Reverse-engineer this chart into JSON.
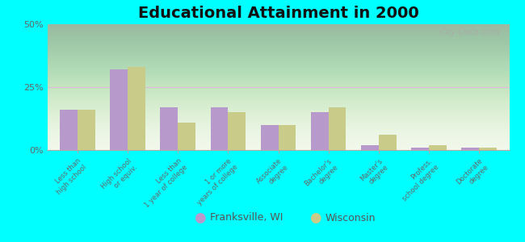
{
  "title": "Educational Attainment in 2000",
  "categories": [
    "Less than\nhigh school",
    "High school\nor equiv.",
    "Less than\n1 year of college",
    "1 or more\nyears of college",
    "Associate\ndegree",
    "Bachelor's\ndegree",
    "Master's\ndegree",
    "Profess.\nschool degree",
    "Doctorate\ndegree"
  ],
  "franksville": [
    16,
    32,
    17,
    17,
    10,
    15,
    2,
    1,
    1
  ],
  "wisconsin": [
    16,
    33,
    11,
    15,
    10,
    17,
    6,
    2,
    1
  ],
  "franksville_color": "#b899cc",
  "wisconsin_color": "#c8cc88",
  "background_top": "#f0f7e8",
  "background_bottom": "#d4eecc",
  "outer_background": "#00ffff",
  "ylim": [
    0,
    50
  ],
  "yticks": [
    0,
    25,
    50
  ],
  "ytick_labels": [
    "0%",
    "25%",
    "50%"
  ],
  "bar_width": 0.35,
  "title_fontsize": 14,
  "legend_labels": [
    "Franksville, WI",
    "Wisconsin"
  ],
  "watermark": "City-Data.com"
}
